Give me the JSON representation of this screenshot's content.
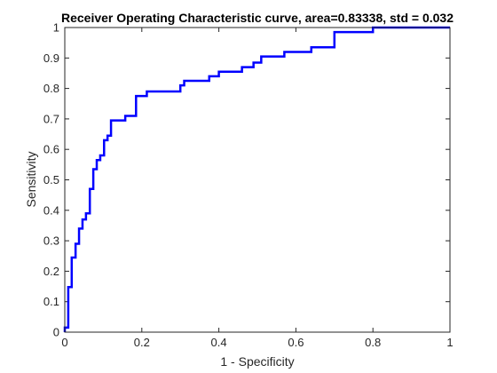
{
  "chart_data": {
    "type": "line",
    "title": "Receiver Operating Characteristic curve, area=0.83338, std = 0.032",
    "xlabel": "1 - Specificity",
    "ylabel": "Sensitivity",
    "xlim": [
      0,
      1
    ],
    "ylim": [
      0,
      1
    ],
    "xticks": [
      "0",
      "0.2",
      "0.4",
      "0.6",
      "0.8",
      "1"
    ],
    "yticks": [
      "0",
      "0.1",
      "0.2",
      "0.3",
      "0.4",
      "0.5",
      "0.6",
      "0.7",
      "0.8",
      "0.9",
      "1"
    ],
    "grid": false,
    "series": [
      {
        "color": "#0000ff",
        "x": [
          0,
          0,
          0.009,
          0.009,
          0.018,
          0.018,
          0.028,
          0.028,
          0.037,
          0.037,
          0.046,
          0.046,
          0.055,
          0.055,
          0.065,
          0.065,
          0.074,
          0.074,
          0.083,
          0.083,
          0.092,
          0.092,
          0.102,
          0.102,
          0.111,
          0.111,
          0.12,
          0.12,
          0.157,
          0.157,
          0.185,
          0.185,
          0.213,
          0.213,
          0.3,
          0.3,
          0.31,
          0.31,
          0.375,
          0.375,
          0.4,
          0.4,
          0.46,
          0.46,
          0.49,
          0.49,
          0.51,
          0.51,
          0.57,
          0.57,
          0.64,
          0.64,
          0.7,
          0.7,
          0.8,
          0.8,
          1
        ],
        "y": [
          0,
          0.015,
          0.015,
          0.148,
          0.148,
          0.245,
          0.245,
          0.29,
          0.29,
          0.34,
          0.34,
          0.37,
          0.37,
          0.39,
          0.39,
          0.47,
          0.47,
          0.535,
          0.535,
          0.565,
          0.565,
          0.58,
          0.58,
          0.63,
          0.63,
          0.645,
          0.645,
          0.695,
          0.695,
          0.71,
          0.71,
          0.775,
          0.775,
          0.79,
          0.79,
          0.81,
          0.81,
          0.825,
          0.825,
          0.84,
          0.84,
          0.855,
          0.855,
          0.87,
          0.87,
          0.885,
          0.885,
          0.905,
          0.905,
          0.92,
          0.92,
          0.935,
          0.935,
          0.985,
          0.985,
          1,
          1
        ]
      }
    ]
  }
}
